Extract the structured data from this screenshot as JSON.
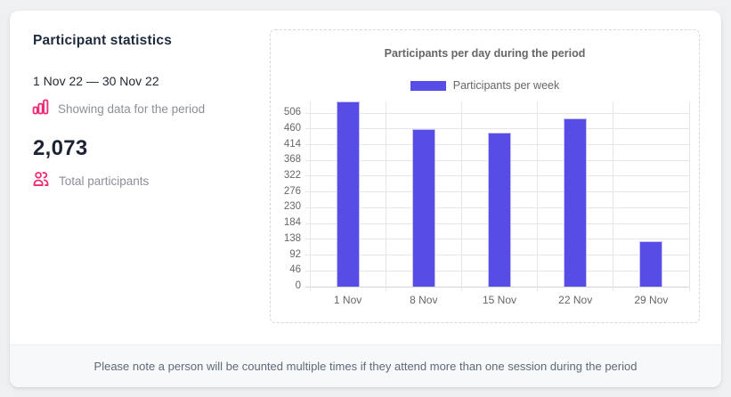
{
  "panel": {
    "title": "Participant statistics",
    "date_range": "1 Nov 22 — 30 Nov 22",
    "period_label": "Showing data for the period",
    "total_value": "2,073",
    "total_label": "Total participants",
    "accent_pink": "#ee2b77",
    "icons": {
      "period": "bar-chart-icon",
      "total": "people-icon"
    }
  },
  "footer": {
    "note": "Please note a person will be counted multiple times if they attend more than one session during the period"
  },
  "chart_data": {
    "type": "bar",
    "title": "Participants per day during the period",
    "legend": [
      {
        "label": "Participants per week",
        "color": "#574de6"
      }
    ],
    "legend_position": "top",
    "categories": [
      "1 Nov",
      "8 Nov",
      "15 Nov",
      "22 Nov",
      "29 Nov"
    ],
    "values": [
      540,
      460,
      450,
      490,
      133
    ],
    "y_ticks": [
      0,
      46,
      92,
      138,
      184,
      230,
      276,
      322,
      368,
      414,
      460,
      506
    ],
    "ylim": [
      0,
      540
    ],
    "xlabel": "",
    "ylabel": "",
    "grid": true,
    "colors": {
      "bar": "#574de6",
      "bar_border": "#c6c1f3",
      "grid": "#e6e6e6",
      "axis": "#d4d4d4",
      "text": "#666666"
    }
  }
}
